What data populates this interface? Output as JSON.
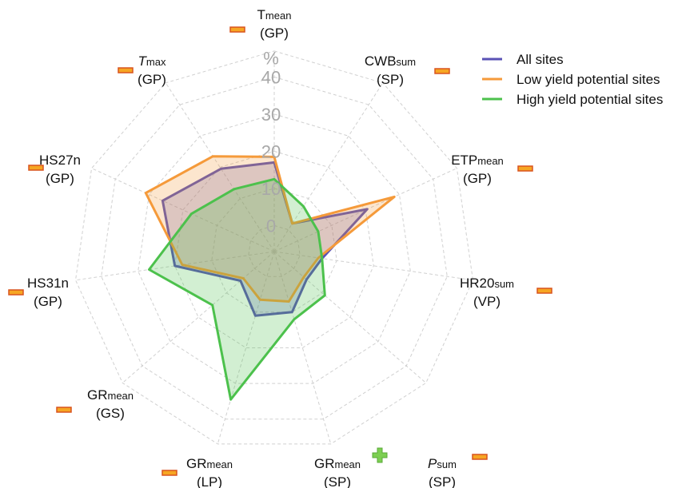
{
  "chart_data": {
    "type": "radar",
    "y_label": "%",
    "categories": [
      {
        "symbol": "T",
        "subscript": "mean",
        "group": "(GP)",
        "marker": "minus"
      },
      {
        "symbol": "CWB",
        "subscript": "sum",
        "group": "(SP)",
        "marker": "minus"
      },
      {
        "symbol": "ETP",
        "subscript": "mean",
        "group": "(GP)",
        "marker": "minus"
      },
      {
        "symbol": "HR20",
        "subscript": "sum",
        "group": "(VP)",
        "marker": "minus"
      },
      {
        "symbol": "P",
        "subscript": "sum",
        "group": "(SP)",
        "marker": "minus",
        "italic": true
      },
      {
        "symbol": "GR",
        "subscript": "mean",
        "group": "(SP)",
        "marker": "plus"
      },
      {
        "symbol": "GR",
        "subscript": "mean",
        "group": "(LP)",
        "marker": "minus"
      },
      {
        "symbol": "GR",
        "subscript": "mean",
        "group": "(GS)",
        "marker": "minus"
      },
      {
        "symbol": "HS31n",
        "group": "(GP)",
        "marker": "minus"
      },
      {
        "symbol": "HS27n",
        "group": "(GP)",
        "marker": "minus"
      },
      {
        "symbol": "T",
        "subscript": "max",
        "group": "(GP)",
        "marker": "minus",
        "italic": true
      }
    ],
    "series": [
      {
        "name": "All sites",
        "color": "#5a52b5",
        "values": [
          17,
          2,
          20.5,
          6,
          4.5,
          10,
          11,
          5,
          20,
          26,
          19.5
        ]
      },
      {
        "name": "Low yield potential sites",
        "color": "#f59a3a",
        "values": [
          18.5,
          2,
          28.5,
          5,
          3.5,
          7,
          6.5,
          4,
          18,
          31,
          23.5
        ]
      },
      {
        "name": "High yield potential sites",
        "color": "#4cc14c",
        "values": [
          12.5,
          7.5,
          6,
          6,
          11,
          12,
          34.5,
          15,
          27,
          17.5,
          13
        ]
      }
    ],
    "ylim": [
      -7,
      47
    ],
    "yticks": [
      0,
      10,
      20,
      30,
      40
    ],
    "grid": true,
    "legend": "top-right"
  }
}
